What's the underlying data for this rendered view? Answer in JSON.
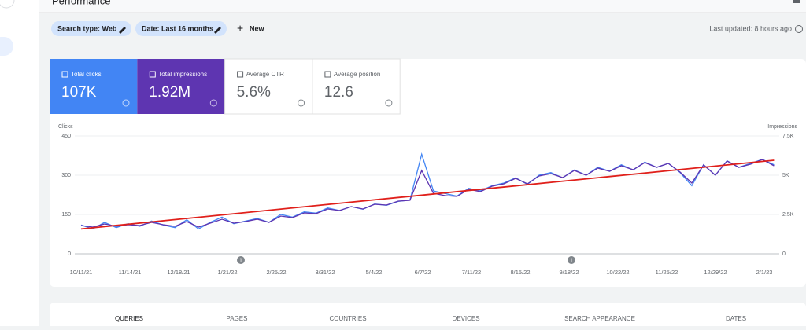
{
  "header": {
    "title": "Performance",
    "last_updated": "Last updated: 8 hours ago"
  },
  "filters": [
    "Search type: Web",
    "Date: Last 16 months"
  ],
  "new_button": "New",
  "metrics": [
    {
      "label": "Total clicks",
      "value": "107K",
      "selected": true,
      "color": "#4285f4"
    },
    {
      "label": "Total impressions",
      "value": "1.92M",
      "selected": true,
      "color": "#5e35b1"
    },
    {
      "label": "Average CTR",
      "value": "5.6%",
      "selected": false,
      "color": "#ffffff"
    },
    {
      "label": "Average position",
      "value": "12.6",
      "selected": false,
      "color": "#ffffff"
    }
  ],
  "chart_data": {
    "type": "line",
    "ylabel": "Clicks",
    "y2label": "Impressions",
    "ylim": [
      0,
      450
    ],
    "yticks": [
      0,
      150,
      300,
      450
    ],
    "y2lim": [
      0,
      7500
    ],
    "y2ticks": [
      0,
      {
        "value": 2500,
        "label": "2.5K"
      },
      {
        "value": 5000,
        "label": "5K"
      },
      {
        "value": 7500,
        "label": "7.5K"
      }
    ],
    "xticks": [
      "10/11/21",
      "11/14/21",
      "12/18/21",
      "1/21/22",
      "2/25/22",
      "3/31/22",
      "5/4/22",
      "6/7/22",
      "7/11/22",
      "8/15/22",
      "9/18/22",
      "10/22/22",
      "11/25/22",
      "12/29/22",
      "2/1/23"
    ],
    "annotations": [
      "1",
      "1"
    ],
    "grid": true,
    "series": [
      {
        "name": "Clicks",
        "color": "#4285f4",
        "values": [
          110,
          95,
          120,
          100,
          115,
          105,
          125,
          110,
          100,
          130,
          95,
          120,
          140,
          115,
          125,
          135,
          120,
          150,
          140,
          160,
          155,
          175,
          165,
          180,
          170,
          190,
          185,
          200,
          205,
          380,
          240,
          230,
          220,
          250,
          240,
          260,
          270,
          290,
          265,
          300,
          310,
          290,
          320,
          300,
          330,
          315,
          340,
          320,
          350,
          330,
          345,
          310,
          260,
          340,
          300,
          355,
          330,
          345,
          360,
          340
        ]
      },
      {
        "name": "Impressions",
        "color": "#5e35b1",
        "axis": "y2",
        "values": [
          1800,
          1700,
          1900,
          1750,
          1850,
          1800,
          2000,
          1850,
          1750,
          2050,
          1700,
          1950,
          2200,
          1950,
          2050,
          2200,
          2000,
          2400,
          2300,
          2600,
          2550,
          2850,
          2750,
          3000,
          2850,
          3150,
          3100,
          3350,
          3400,
          5300,
          3850,
          3700,
          3650,
          4100,
          3950,
          4300,
          4450,
          4800,
          4450,
          4950,
          5100,
          4850,
          5300,
          5000,
          5450,
          5250,
          5600,
          5350,
          5800,
          5500,
          5750,
          5200,
          4500,
          5650,
          5000,
          5900,
          5500,
          5700,
          6000,
          5600
        ]
      }
    ],
    "trend": {
      "color": "#e0201b",
      "values": [
        95,
        357
      ]
    }
  },
  "tabs": [
    "QUERIES",
    "PAGES",
    "COUNTRIES",
    "DEVICES",
    "SEARCH APPEARANCE",
    "DATES"
  ]
}
